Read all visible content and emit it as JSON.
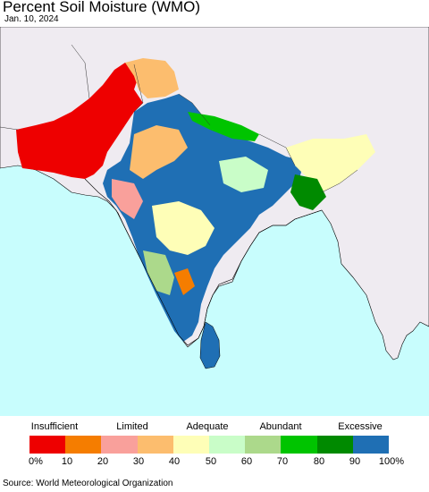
{
  "title": "Percent Soil Moisture (WMO)",
  "date": "Jan. 10, 2024",
  "legend": {
    "categories": [
      "Insufficient",
      "Limited",
      "Adequate",
      "Abundant",
      "Excessive"
    ],
    "ticks": [
      "0%",
      "10",
      "20",
      "30",
      "40",
      "50",
      "60",
      "70",
      "80",
      "90",
      "100%"
    ],
    "colors": [
      "#ee0000",
      "#f57d00",
      "#f9a09b",
      "#fcbd6e",
      "#fefeb7",
      "#c9fdc8",
      "#acd98b",
      "#00c400",
      "#008a00",
      "#1f6fb4"
    ]
  },
  "map_colors": {
    "ocean": "#c8fdfd",
    "land": "#efebf1",
    "border": "#000000"
  },
  "source": "Source: World Meteorological Organization"
}
